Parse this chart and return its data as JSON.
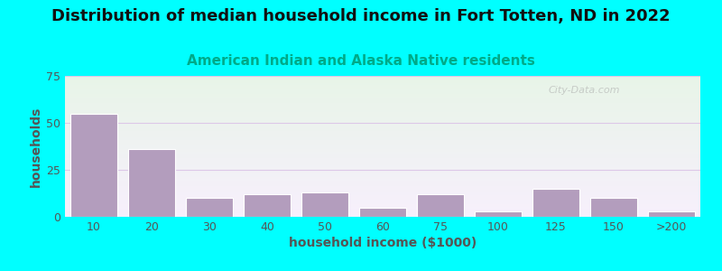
{
  "title": "Distribution of median household income in Fort Totten, ND in 2022",
  "subtitle": "American Indian and Alaska Native residents",
  "xlabel": "household income ($1000)",
  "ylabel": "households",
  "background_outer": "#00FFFF",
  "bar_color": "#b39dbd",
  "categories": [
    "10",
    "20",
    "30",
    "40",
    "50",
    "60",
    "75",
    "100",
    "125",
    "150",
    ">200"
  ],
  "values": [
    55,
    36,
    10,
    12,
    13,
    5,
    12,
    3,
    15,
    10,
    3
  ],
  "ylim": [
    0,
    75
  ],
  "yticks": [
    0,
    25,
    50,
    75
  ],
  "title_fontsize": 13,
  "subtitle_fontsize": 11,
  "axis_label_fontsize": 10,
  "tick_fontsize": 9,
  "title_color": "#111111",
  "subtitle_color": "#00aa88",
  "axis_label_color": "#555555",
  "watermark": "City-Data.com",
  "grid_color": "#e0d0e8",
  "bg_top_color": "#e8f5e8",
  "bg_bottom_color": "#f8f2fc"
}
